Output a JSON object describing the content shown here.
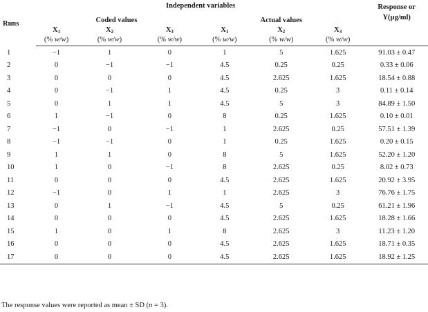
{
  "header": {
    "runs": "Runs",
    "independent_variables": "Independent variables",
    "coded_values": "Coded values",
    "actual_values": "Actual values",
    "response_line1": "Response or",
    "response_line2": "Y(µg/ml)",
    "var_x": "X",
    "sub1": "1",
    "sub2": "2",
    "sub3": "3",
    "unit_open": "(% ",
    "unit_w": "w/w",
    "unit_close": ")"
  },
  "rows": [
    {
      "run": "1",
      "cx1": "−1",
      "cx2": "1",
      "cx3": "0",
      "ax1": "1",
      "ax2": "5",
      "ax3": "1.625",
      "resp": "91.03 ± 0.47"
    },
    {
      "run": "2",
      "cx1": "0",
      "cx2": "−1",
      "cx3": "−1",
      "ax1": "4.5",
      "ax2": "0.25",
      "ax3": "0.25",
      "resp": "0.33 ± 0.06"
    },
    {
      "run": "3",
      "cx1": "0",
      "cx2": "0",
      "cx3": "0",
      "ax1": "4.5",
      "ax2": "2.625",
      "ax3": "1.625",
      "resp": "18.54 ± 0.88"
    },
    {
      "run": "4",
      "cx1": "0",
      "cx2": "−1",
      "cx3": "1",
      "ax1": "4.5",
      "ax2": "0.25",
      "ax3": "3",
      "resp": "0.11 ± 0.14"
    },
    {
      "run": "5",
      "cx1": "0",
      "cx2": "1",
      "cx3": "1",
      "ax1": "4.5",
      "ax2": "5",
      "ax3": "3",
      "resp": "84.89 ± 1.50"
    },
    {
      "run": "6",
      "cx1": "1",
      "cx2": "−1",
      "cx3": "0",
      "ax1": "8",
      "ax2": "0.25",
      "ax3": "1.625",
      "resp": "0.10 ± 0.01"
    },
    {
      "run": "7",
      "cx1": "−1",
      "cx2": "0",
      "cx3": "−1",
      "ax1": "1",
      "ax2": "2.625",
      "ax3": "0.25",
      "resp": "57.51 ± 1.39"
    },
    {
      "run": "8",
      "cx1": "−1",
      "cx2": "−1",
      "cx3": "0",
      "ax1": "1",
      "ax2": "0.25",
      "ax3": "1.625",
      "resp": "0.20 ± 0.15"
    },
    {
      "run": "9",
      "cx1": "1",
      "cx2": "1",
      "cx3": "0",
      "ax1": "8",
      "ax2": "5",
      "ax3": "1.625",
      "resp": "52.20 ± 1.20"
    },
    {
      "run": "10",
      "cx1": "1",
      "cx2": "0",
      "cx3": "−1",
      "ax1": "8",
      "ax2": "2.625",
      "ax3": "0.25",
      "resp": "8.02 ± 0.73"
    },
    {
      "run": "11",
      "cx1": "0",
      "cx2": "0",
      "cx3": "0",
      "ax1": "4.5",
      "ax2": "2.625",
      "ax3": "1.625",
      "resp": "20.92 ± 3.95"
    },
    {
      "run": "12",
      "cx1": "−1",
      "cx2": "0",
      "cx3": "1",
      "ax1": "1",
      "ax2": "2.625",
      "ax3": "3",
      "resp": "76.76 ± 1.75"
    },
    {
      "run": "13",
      "cx1": "0",
      "cx2": "1",
      "cx3": "−1",
      "ax1": "4.5",
      "ax2": "5",
      "ax3": "0.25",
      "resp": "61.21 ± 1.96"
    },
    {
      "run": "14",
      "cx1": "0",
      "cx2": "0",
      "cx3": "0",
      "ax1": "4.5",
      "ax2": "2.625",
      "ax3": "1.625",
      "resp": "18.28 ± 1.66"
    },
    {
      "run": "15",
      "cx1": "1",
      "cx2": "0",
      "cx3": "1",
      "ax1": "8",
      "ax2": "2.625",
      "ax3": "3",
      "resp": "11.23 ± 1.20"
    },
    {
      "run": "16",
      "cx1": "0",
      "cx2": "0",
      "cx3": "0",
      "ax1": "4.5",
      "ax2": "2.625",
      "ax3": "1.625",
      "resp": "18.71 ± 0.35"
    },
    {
      "run": "17",
      "cx1": "0",
      "cx2": "0",
      "cx3": "0",
      "ax1": "4.5",
      "ax2": "2.625",
      "ax3": "1.625",
      "resp": "18.92 ± 1.25"
    }
  ],
  "footnote": {
    "before": "The response values were reported as mean ± SD (",
    "n": "n",
    "after": " = 3)."
  }
}
